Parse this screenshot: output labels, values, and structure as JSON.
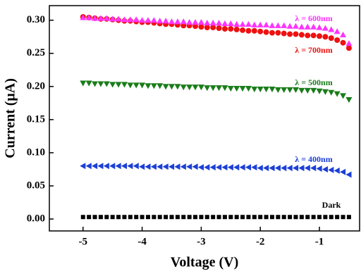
{
  "chart_data": {
    "type": "scatter",
    "x_label": "Voltage (V)",
    "y_label": "Current (μA)",
    "x": [
      -5.0,
      -4.9,
      -4.8,
      -4.7,
      -4.6,
      -4.5,
      -4.4,
      -4.3,
      -4.2,
      -4.1,
      -4.0,
      -3.9,
      -3.8,
      -3.7,
      -3.6,
      -3.5,
      -3.4,
      -3.3,
      -3.2,
      -3.1,
      -3.0,
      -2.9,
      -2.8,
      -2.7,
      -2.6,
      -2.5,
      -2.4,
      -2.3,
      -2.2,
      -2.1,
      -2.0,
      -1.9,
      -1.8,
      -1.7,
      -1.6,
      -1.5,
      -1.4,
      -1.3,
      -1.2,
      -1.1,
      -1.0,
      -0.9,
      -0.8,
      -0.7,
      -0.6,
      -0.5
    ],
    "series": [
      {
        "name": "Dark",
        "color": "#000000",
        "marker": "square",
        "values": [
          0.003,
          0.003,
          0.003,
          0.003,
          0.003,
          0.003,
          0.003,
          0.003,
          0.003,
          0.003,
          0.003,
          0.003,
          0.003,
          0.003,
          0.003,
          0.003,
          0.003,
          0.003,
          0.003,
          0.003,
          0.003,
          0.003,
          0.003,
          0.003,
          0.003,
          0.003,
          0.003,
          0.003,
          0.003,
          0.003,
          0.003,
          0.003,
          0.003,
          0.003,
          0.003,
          0.003,
          0.003,
          0.003,
          0.003,
          0.003,
          0.003,
          0.003,
          0.003,
          0.003,
          0.003,
          0.003
        ]
      },
      {
        "name": "λ = 400nm",
        "color": "#1c3fd6",
        "marker": "triangle-left",
        "values": [
          0.08,
          0.08,
          0.08,
          0.08,
          0.08,
          0.08,
          0.08,
          0.08,
          0.08,
          0.08,
          0.079,
          0.079,
          0.079,
          0.079,
          0.079,
          0.079,
          0.079,
          0.079,
          0.079,
          0.079,
          0.078,
          0.078,
          0.078,
          0.078,
          0.078,
          0.078,
          0.078,
          0.078,
          0.078,
          0.078,
          0.077,
          0.077,
          0.077,
          0.077,
          0.077,
          0.077,
          0.077,
          0.077,
          0.077,
          0.077,
          0.076,
          0.075,
          0.074,
          0.073,
          0.071,
          0.067
        ]
      },
      {
        "name": "λ = 500nm",
        "color": "#1a7d1a",
        "marker": "triangle-down",
        "values": [
          0.205,
          0.205,
          0.204,
          0.204,
          0.204,
          0.203,
          0.203,
          0.203,
          0.202,
          0.202,
          0.202,
          0.201,
          0.201,
          0.201,
          0.2,
          0.2,
          0.2,
          0.199,
          0.199,
          0.199,
          0.199,
          0.198,
          0.198,
          0.198,
          0.198,
          0.197,
          0.197,
          0.197,
          0.197,
          0.196,
          0.196,
          0.196,
          0.196,
          0.195,
          0.195,
          0.195,
          0.195,
          0.194,
          0.194,
          0.194,
          0.193,
          0.192,
          0.191,
          0.189,
          0.186,
          0.18
        ]
      },
      {
        "name": "λ = 700nm",
        "color": "#ee1111",
        "marker": "circle",
        "values": [
          0.305,
          0.304,
          0.303,
          0.302,
          0.302,
          0.301,
          0.3,
          0.299,
          0.299,
          0.298,
          0.297,
          0.297,
          0.296,
          0.295,
          0.294,
          0.294,
          0.293,
          0.292,
          0.292,
          0.291,
          0.29,
          0.289,
          0.289,
          0.288,
          0.287,
          0.287,
          0.286,
          0.285,
          0.284,
          0.284,
          0.283,
          0.282,
          0.281,
          0.281,
          0.28,
          0.279,
          0.279,
          0.278,
          0.277,
          0.277,
          0.276,
          0.275,
          0.273,
          0.27,
          0.266,
          0.258
        ]
      },
      {
        "name": "λ = 600nm",
        "color": "#ff33ff",
        "marker": "triangle-up",
        "values": [
          0.304,
          0.304,
          0.303,
          0.303,
          0.303,
          0.302,
          0.302,
          0.301,
          0.301,
          0.301,
          0.3,
          0.3,
          0.3,
          0.299,
          0.299,
          0.298,
          0.298,
          0.298,
          0.297,
          0.297,
          0.297,
          0.296,
          0.296,
          0.296,
          0.295,
          0.295,
          0.294,
          0.294,
          0.294,
          0.293,
          0.293,
          0.293,
          0.292,
          0.292,
          0.292,
          0.291,
          0.291,
          0.29,
          0.29,
          0.29,
          0.289,
          0.288,
          0.286,
          0.283,
          0.278,
          0.265
        ]
      }
    ],
    "xlim": [
      -5.57,
      -0.32
    ],
    "xticks": [
      -5,
      -4,
      -3,
      -2,
      -1
    ],
    "ylim": [
      -0.018,
      0.322
    ],
    "yticks": [
      {
        "value": 0,
        "label": "0.00"
      },
      {
        "value": 0.05,
        "label": "0.05"
      },
      {
        "value": 0.1,
        "label": "0.10"
      },
      {
        "value": 0.15,
        "label": "0.15"
      },
      {
        "value": 0.2,
        "label": "0.20"
      },
      {
        "value": 0.25,
        "label": "0.25"
      },
      {
        "value": 0.3,
        "label": "0.30"
      }
    ]
  }
}
